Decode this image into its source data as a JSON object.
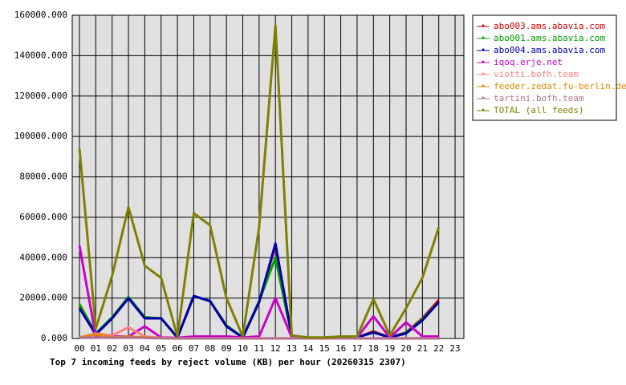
{
  "chart_data": {
    "type": "line",
    "title": "Top 7 incoming feeds by reject volume (KB) per hour (20260315 2307)",
    "categories": [
      "00",
      "01",
      "02",
      "03",
      "04",
      "05",
      "06",
      "07",
      "08",
      "09",
      "10",
      "11",
      "12",
      "13",
      "14",
      "15",
      "16",
      "17",
      "18",
      "19",
      "20",
      "21",
      "22",
      "23"
    ],
    "ylim": [
      0,
      160000
    ],
    "yticks": [
      {
        "value": 0,
        "label": "0.000"
      },
      {
        "value": 20000,
        "label": "20000.000"
      },
      {
        "value": 40000,
        "label": "40000.000"
      },
      {
        "value": 60000,
        "label": "60000.000"
      },
      {
        "value": 80000,
        "label": "80000.000"
      },
      {
        "value": 100000,
        "label": "100000.000"
      },
      {
        "value": 120000,
        "label": "120000.000"
      },
      {
        "value": 140000,
        "label": "140000.000"
      },
      {
        "value": 160000,
        "label": "160000.000"
      }
    ],
    "grid": true,
    "legend": "right",
    "series": [
      {
        "name": "abo003.ams.abavia.com",
        "color": "#cc0000",
        "values": [
          16000,
          2000,
          10000,
          20000,
          10000,
          10000,
          500,
          21000,
          18500,
          6000,
          500,
          18000,
          46000,
          1000,
          300,
          300,
          500,
          500,
          3500,
          500,
          3000,
          10000,
          19000,
          null
        ]
      },
      {
        "name": "abo001.ams.abavia.com",
        "color": "#00a000",
        "values": [
          17000,
          2500,
          10500,
          20500,
          10500,
          10000,
          500,
          21000,
          18500,
          6500,
          500,
          18500,
          40000,
          1000,
          300,
          300,
          500,
          500,
          3000,
          500,
          2800,
          9500,
          18000,
          null
        ]
      },
      {
        "name": "abo004.ams.abavia.com",
        "color": "#0000aa",
        "values": [
          15000,
          2000,
          10000,
          20000,
          10000,
          10000,
          500,
          21000,
          18500,
          6000,
          500,
          18000,
          47000,
          1000,
          300,
          300,
          500,
          500,
          3000,
          500,
          2500,
          9000,
          18000,
          null
        ]
      },
      {
        "name": "iqoq.erje.net",
        "color": "#cc00cc",
        "values": [
          46000,
          1000,
          1000,
          1000,
          6000,
          500,
          300,
          1000,
          1000,
          1000,
          500,
          1000,
          20000,
          500,
          200,
          200,
          500,
          500,
          11000,
          500,
          8000,
          1000,
          1000,
          null
        ]
      },
      {
        "name": "viotti.bofh.team",
        "color": "#ff8080",
        "values": [
          500,
          2500,
          1500,
          5500,
          1000,
          300,
          100,
          100,
          100,
          100,
          100,
          100,
          100,
          100,
          100,
          100,
          100,
          100,
          100,
          100,
          100,
          100,
          100,
          null
        ]
      },
      {
        "name": "feeder.zedat.fu-berlin.de",
        "color": "#dd8800",
        "values": [
          500,
          2000,
          500,
          1000,
          500,
          200,
          0,
          0,
          0,
          0,
          0,
          0,
          0,
          0,
          0,
          0,
          0,
          0,
          0,
          0,
          0,
          0,
          0,
          null
        ]
      },
      {
        "name": "tartini.bofh.team",
        "color": "#b07090",
        "values": [
          300,
          500,
          300,
          500,
          300,
          100,
          0,
          0,
          0,
          0,
          0,
          0,
          0,
          0,
          0,
          0,
          0,
          0,
          0,
          0,
          0,
          0,
          0,
          null
        ]
      },
      {
        "name": "TOTAL (all feeds)",
        "color": "#808000",
        "values": [
          94000,
          5000,
          31000,
          65000,
          36000,
          30000,
          1000,
          62000,
          56000,
          20000,
          1000,
          55000,
          155000,
          1500,
          500,
          500,
          1000,
          1000,
          19500,
          1500,
          15000,
          30000,
          55000,
          null
        ]
      }
    ]
  }
}
